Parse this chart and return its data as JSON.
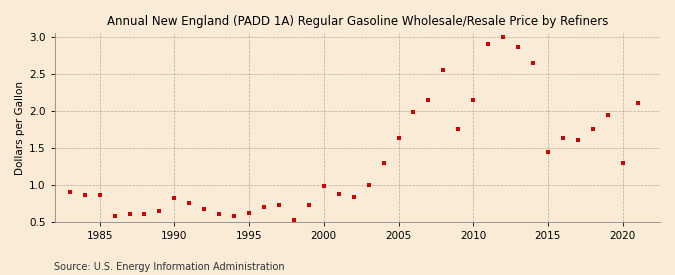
{
  "title": "Annual New England (PADD 1A) Regular Gasoline Wholesale/Resale Price by Refiners",
  "ylabel": "Dollars per Gallon",
  "source": "Source: U.S. Energy Information Administration",
  "background_color": "#faebd7",
  "marker_color": "#cc0000",
  "years": [
    1983,
    1984,
    1985,
    1986,
    1987,
    1988,
    1989,
    1990,
    1991,
    1992,
    1993,
    1994,
    1995,
    1996,
    1997,
    1998,
    1999,
    2000,
    2001,
    2002,
    2003,
    2004,
    2005,
    2006,
    2007,
    2008,
    2009,
    2010,
    2011,
    2012,
    2013,
    2014,
    2015,
    2016,
    2017,
    2018,
    2019,
    2020,
    2021
  ],
  "values": [
    0.9,
    0.86,
    0.86,
    0.58,
    0.61,
    0.61,
    0.65,
    0.82,
    0.75,
    0.67,
    0.6,
    0.58,
    0.62,
    0.7,
    0.72,
    0.52,
    0.72,
    0.98,
    0.87,
    0.84,
    1.0,
    1.3,
    1.63,
    1.98,
    2.15,
    2.56,
    1.76,
    2.15,
    2.91,
    3.0,
    2.87,
    2.65,
    1.44,
    1.63,
    1.61,
    1.76,
    1.94,
    1.3,
    2.11
  ],
  "xlim": [
    1982,
    2022.5
  ],
  "ylim": [
    0.5,
    3.05
  ],
  "yticks": [
    0.5,
    1.0,
    1.5,
    2.0,
    2.5,
    3.0
  ],
  "xticks": [
    1985,
    1990,
    1995,
    2000,
    2005,
    2010,
    2015,
    2020
  ],
  "title_fontsize": 8.5,
  "ylabel_fontsize": 7.5,
  "tick_fontsize": 7.5,
  "source_fontsize": 7.0,
  "marker_size": 10
}
